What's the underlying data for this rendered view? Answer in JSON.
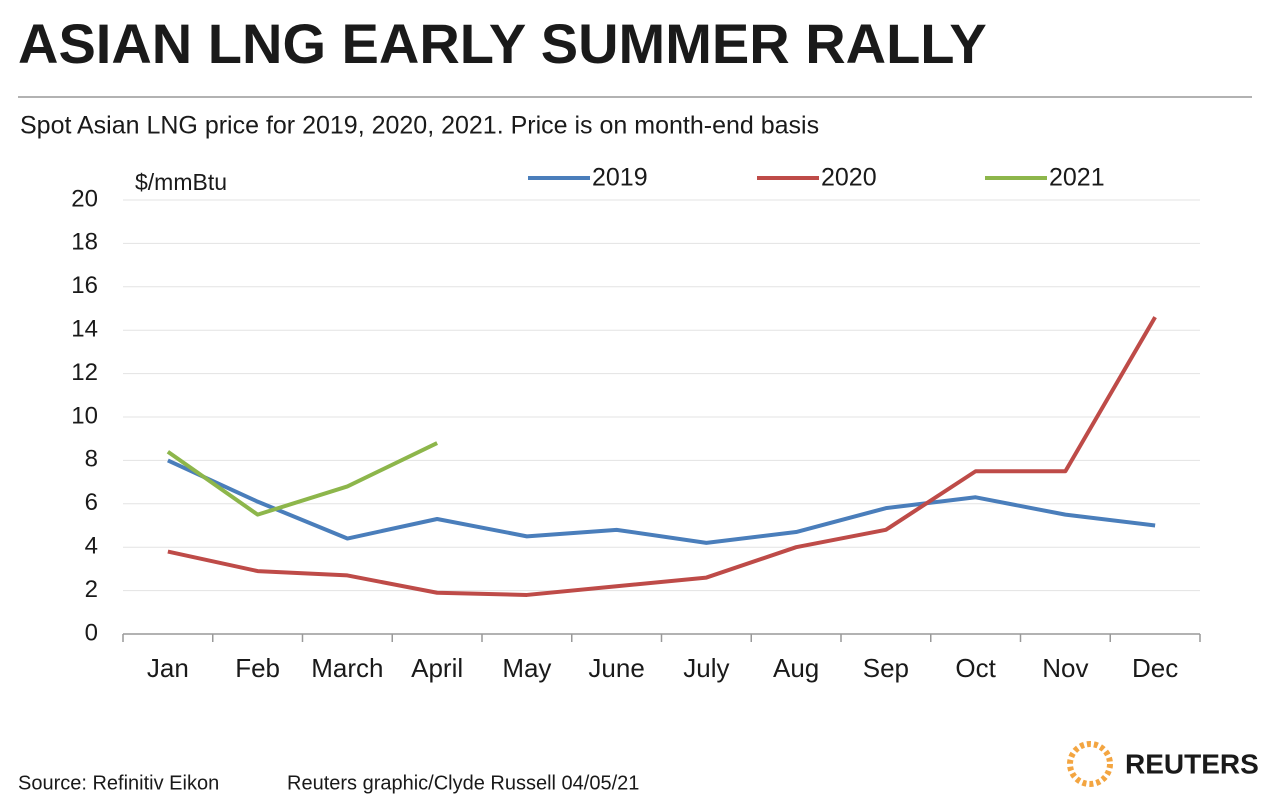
{
  "chart_data": {
    "type": "line",
    "title": "ASIAN LNG EARLY SUMMER RALLY",
    "subtitle": "Spot Asian LNG price for 2019, 2020, 2021. Price is on month-end basis",
    "y_label": "$/mmBtu",
    "categories": [
      "Jan",
      "Feb",
      "March",
      "April",
      "May",
      "June",
      "July",
      "Aug",
      "Sep",
      "Oct",
      "Nov",
      "Dec"
    ],
    "series": [
      {
        "name": "2019",
        "color": "#4a7ebb",
        "values": [
          8.0,
          6.1,
          4.4,
          5.3,
          4.5,
          4.8,
          4.2,
          4.7,
          5.8,
          6.3,
          5.5,
          5.0
        ]
      },
      {
        "name": "2020",
        "color": "#be4b48",
        "values": [
          3.8,
          2.9,
          2.7,
          1.9,
          1.8,
          2.2,
          2.6,
          4.0,
          4.8,
          7.5,
          7.5,
          14.6
        ]
      },
      {
        "name": "2021",
        "color": "#8db64b",
        "values": [
          8.4,
          5.5,
          6.8,
          8.8,
          null,
          null,
          null,
          null,
          null,
          null,
          null,
          null
        ]
      }
    ],
    "ylim": [
      0,
      20
    ],
    "yticks": [
      0,
      2,
      4,
      6,
      8,
      10,
      12,
      14,
      16,
      18,
      20
    ],
    "grid": true,
    "legend": "top",
    "source": "Source: Refinitiv Eikon",
    "credit": "Reuters graphic/Clyde Russell 04/05/21",
    "logo": "REUTERS"
  }
}
